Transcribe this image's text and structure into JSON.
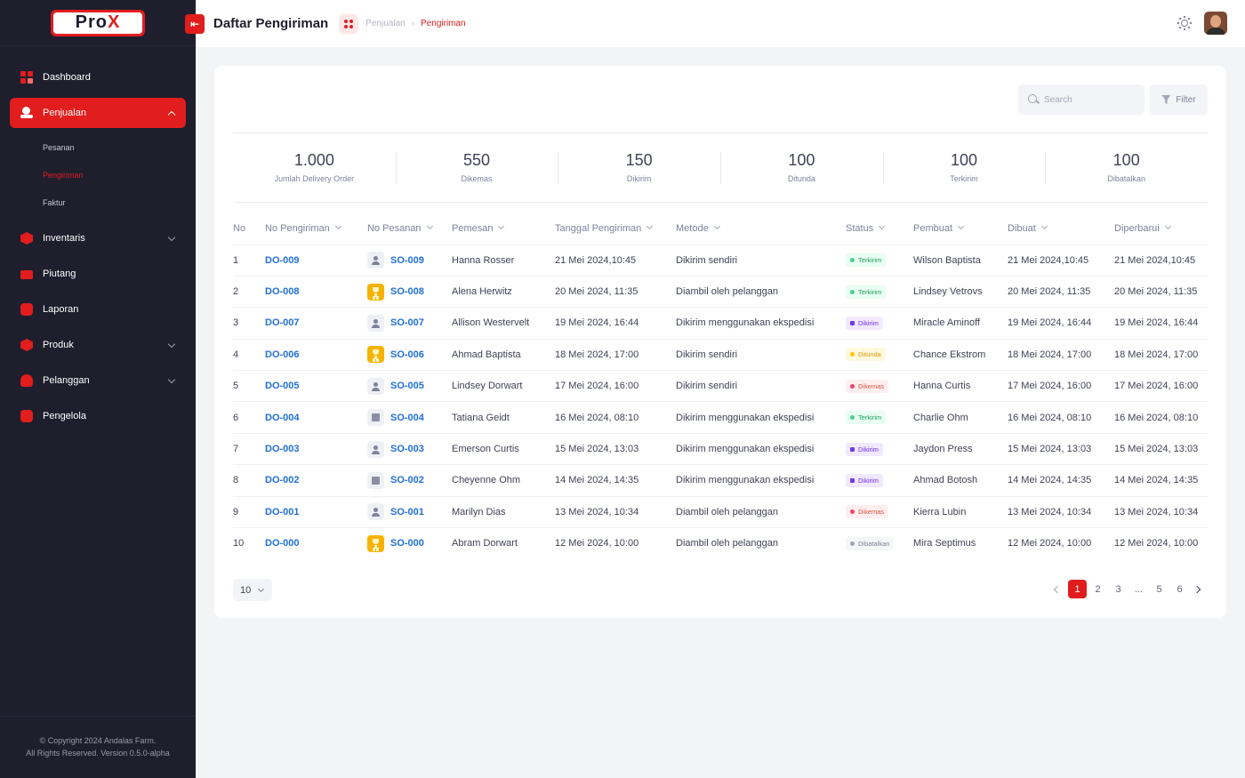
{
  "app": {
    "logo_text_a": "Pro",
    "logo_text_b": "X",
    "accent_color": "#e11d1d"
  },
  "sidebar": {
    "items": [
      {
        "label": "Dashboard",
        "icon": "dashboard-icon"
      },
      {
        "label": "Penjualan",
        "icon": "sales-hand-icon"
      },
      {
        "label": "Inventaris",
        "icon": "inventory-box-icon"
      },
      {
        "label": "Piutang",
        "icon": "receivable-card-icon"
      },
      {
        "label": "Laporan",
        "icon": "report-icon"
      },
      {
        "label": "Produk",
        "icon": "product-icon"
      },
      {
        "label": "Pelanggan",
        "icon": "customer-icon"
      },
      {
        "label": "Pengelola",
        "icon": "manager-icon"
      }
    ],
    "submenu": [
      {
        "label": "Pesanan"
      },
      {
        "label": "Pengiriman"
      },
      {
        "label": "Faktur"
      }
    ],
    "copyright_line1": "© Copyright 2024 Andalas Farm.",
    "copyright_line2": "All Rights Reserved. Version 0.5.0-alpha"
  },
  "header": {
    "title": "Daftar Pengiriman",
    "breadcrumb": [
      "Penjualan",
      "Pengiriman"
    ]
  },
  "toolbar": {
    "search_placeholder": "Search",
    "filter_label": "Filter"
  },
  "stats": [
    {
      "value": "1.000",
      "label": "Jumlah Delivery Order"
    },
    {
      "value": "550",
      "label": "Dikemas"
    },
    {
      "value": "150",
      "label": "Dikirim"
    },
    {
      "value": "100",
      "label": "Ditunda"
    },
    {
      "value": "100",
      "label": "Terkirim"
    },
    {
      "value": "100",
      "label": "Dibatalkan"
    }
  ],
  "table": {
    "columns": [
      "No",
      "No Pengiriman",
      "No Pesanan",
      "Pemesan",
      "Tanggal Pengiriman",
      "Metode",
      "Status",
      "Pembuat",
      "Dibuat",
      "Diperbarui"
    ],
    "rows": [
      {
        "no": "1",
        "do": "DO-009",
        "so": "SO-009",
        "so_icon": "user",
        "pemesan": "Hanna Rosser",
        "tanggal": "21 Mei 2024,10:45",
        "metode": "Dikirim sendiri",
        "status": "Terkirim",
        "status_key": "terkirim",
        "pembuat": "Wilson Baptista",
        "dibuat": "21 Mei 2024,10:45",
        "diperbarui": "21 Mei 2024,10:45"
      },
      {
        "no": "2",
        "do": "DO-008",
        "so": "SO-008",
        "so_icon": "trophy",
        "pemesan": "Alena Herwitz",
        "tanggal": "20 Mei 2024, 11:35",
        "metode": "Diambil oleh pelanggan",
        "status": "Terkirim",
        "status_key": "terkirim",
        "pembuat": "Lindsey Vetrovs",
        "dibuat": "20 Mei 2024, 11:35",
        "diperbarui": "20 Mei 2024, 11:35"
      },
      {
        "no": "3",
        "do": "DO-007",
        "so": "SO-007",
        "so_icon": "user",
        "pemesan": "Allison Westervelt",
        "tanggal": "19 Mei 2024, 16:44",
        "metode": "Dikirim menggunakan ekspedisi",
        "status": "Dikirim",
        "status_key": "dikirim",
        "pembuat": "Miracle Aminoff",
        "dibuat": "19 Mei 2024, 16:44",
        "diperbarui": "19 Mei 2024, 16:44"
      },
      {
        "no": "4",
        "do": "DO-006",
        "so": "SO-006",
        "so_icon": "trophy",
        "pemesan": "Ahmad Baptista",
        "tanggal": "18 Mei 2024, 17:00",
        "metode": "Dikirim sendiri",
        "status": "Ditunda",
        "status_key": "ditunda",
        "pembuat": "Chance Ekstrom",
        "dibuat": "18 Mei 2024, 17:00",
        "diperbarui": "18 Mei 2024, 17:00"
      },
      {
        "no": "5",
        "do": "DO-005",
        "so": "SO-005",
        "so_icon": "user",
        "pemesan": "Lindsey Dorwart",
        "tanggal": "17 Mei 2024, 16:00",
        "metode": "Dikirim sendiri",
        "status": "Dikemas",
        "status_key": "dikemas",
        "pembuat": "Hanna Curtis",
        "dibuat": "17 Mei 2024, 16:00",
        "diperbarui": "17 Mei 2024, 16:00"
      },
      {
        "no": "6",
        "do": "DO-004",
        "so": "SO-004",
        "so_icon": "store",
        "pemesan": "Tatiana Geidt",
        "tanggal": "16 Mei 2024, 08:10",
        "metode": "Dikirim menggunakan ekspedisi",
        "status": "Terkirim",
        "status_key": "terkirim",
        "pembuat": "Charlie Ohm",
        "dibuat": "16 Mei 2024, 08:10",
        "diperbarui": "16 Mei 2024, 08:10"
      },
      {
        "no": "7",
        "do": "DO-003",
        "so": "SO-003",
        "so_icon": "user",
        "pemesan": "Emerson Curtis",
        "tanggal": "15 Mei 2024, 13:03",
        "metode": "Dikirim menggunakan ekspedisi",
        "status": "Dikirim",
        "status_key": "dikirim",
        "pembuat": "Jaydon Press",
        "dibuat": "15 Mei 2024, 13:03",
        "diperbarui": "15 Mei 2024, 13:03"
      },
      {
        "no": "8",
        "do": "DO-002",
        "so": "SO-002",
        "so_icon": "store",
        "pemesan": "Cheyenne Ohm",
        "tanggal": "14 Mei 2024, 14:35",
        "metode": "Dikirim menggunakan ekspedisi",
        "status": "Dikirim",
        "status_key": "dikirim",
        "pembuat": "Ahmad Botosh",
        "dibuat": "14 Mei 2024, 14:35",
        "diperbarui": "14 Mei 2024, 14:35"
      },
      {
        "no": "9",
        "do": "DO-001",
        "so": "SO-001",
        "so_icon": "user",
        "pemesan": "Marilyn Dias",
        "tanggal": "13 Mei 2024, 10:34",
        "metode": "Diambil oleh pelanggan",
        "status": "Dikemas",
        "status_key": "dikemas",
        "pembuat": "Kierra Lubin",
        "dibuat": "13 Mei 2024, 10:34",
        "diperbarui": "13 Mei 2024, 10:34"
      },
      {
        "no": "10",
        "do": "DO-000",
        "so": "SO-000",
        "so_icon": "trophy",
        "pemesan": "Abram Dorwart",
        "tanggal": "12 Mei 2024, 10:00",
        "metode": "Diambil oleh pelanggan",
        "status": "Dibatalkan",
        "status_key": "dibatalkan",
        "pembuat": "Mira Septimus",
        "dibuat": "12 Mei 2024, 10:00",
        "diperbarui": "12 Mei 2024, 10:00"
      }
    ]
  },
  "footer": {
    "page_size": "10",
    "pages": [
      "1",
      "2",
      "3",
      "...",
      "5",
      "6"
    ],
    "current_page": "1"
  }
}
